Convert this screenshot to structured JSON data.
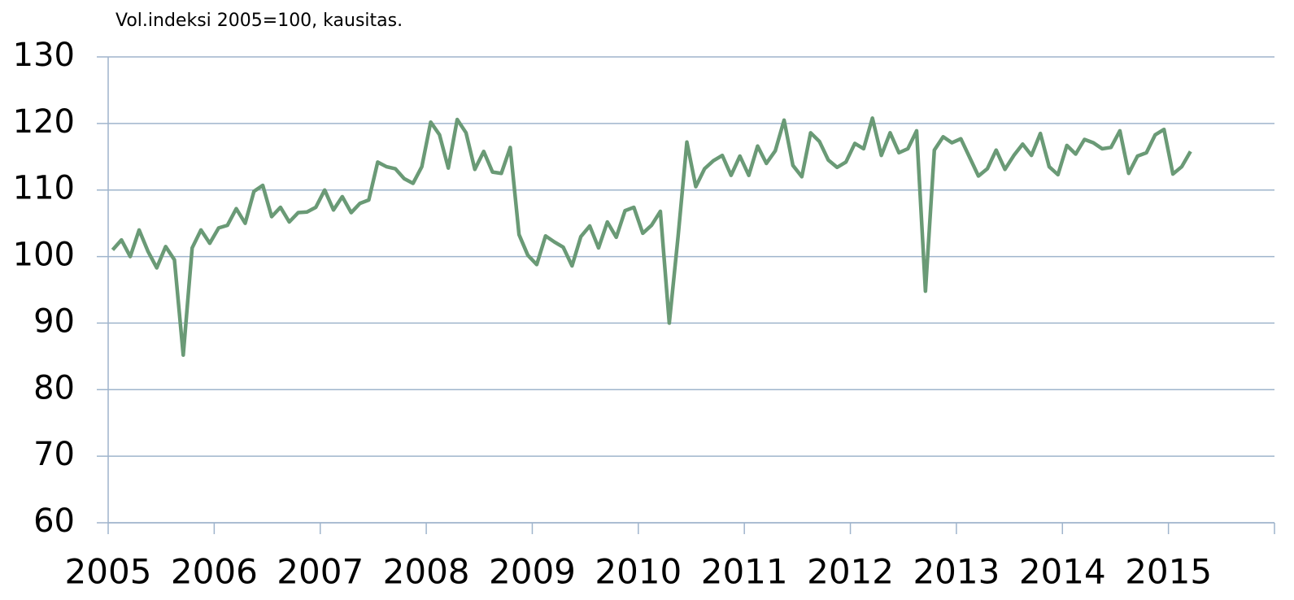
{
  "chart_data": {
    "type": "line",
    "title": "Vol.indeksi 2005=100, kausitas.",
    "xlim": [
      2005,
      2016
    ],
    "xticks": [
      2005,
      2006,
      2007,
      2008,
      2009,
      2010,
      2011,
      2012,
      2013,
      2014,
      2015
    ],
    "ylim": [
      60,
      130
    ],
    "yticks": [
      60,
      70,
      80,
      90,
      100,
      110,
      120,
      130
    ],
    "grid": true,
    "x": [
      2005.042,
      2005.125,
      2005.208,
      2005.292,
      2005.375,
      2005.458,
      2005.542,
      2005.625,
      2005.708,
      2005.792,
      2005.875,
      2005.958,
      2006.042,
      2006.125,
      2006.208,
      2006.292,
      2006.375,
      2006.458,
      2006.542,
      2006.625,
      2006.708,
      2006.792,
      2006.875,
      2006.958,
      2007.042,
      2007.125,
      2007.208,
      2007.292,
      2007.375,
      2007.458,
      2007.542,
      2007.625,
      2007.708,
      2007.792,
      2007.875,
      2007.958,
      2008.042,
      2008.125,
      2008.208,
      2008.292,
      2008.375,
      2008.458,
      2008.542,
      2008.625,
      2008.708,
      2008.792,
      2008.875,
      2008.958,
      2009.042,
      2009.125,
      2009.208,
      2009.292,
      2009.375,
      2009.458,
      2009.542,
      2009.625,
      2009.708,
      2009.792,
      2009.875,
      2009.958,
      2010.042,
      2010.125,
      2010.208,
      2010.292,
      2010.375,
      2010.458,
      2010.542,
      2010.625,
      2010.708,
      2010.792,
      2010.875,
      2010.958,
      2011.042,
      2011.125,
      2011.208,
      2011.292,
      2011.375,
      2011.458,
      2011.542,
      2011.625,
      2011.708,
      2011.792,
      2011.875,
      2011.958,
      2012.042,
      2012.125,
      2012.208,
      2012.292,
      2012.375,
      2012.458,
      2012.542,
      2012.625,
      2012.708,
      2012.792,
      2012.875,
      2012.958,
      2013.042,
      2013.125,
      2013.208,
      2013.292,
      2013.375,
      2013.458,
      2013.542,
      2013.625,
      2013.708,
      2013.792,
      2013.875,
      2013.958,
      2014.042,
      2014.125,
      2014.208,
      2014.292,
      2014.375,
      2014.458,
      2014.542,
      2014.625,
      2014.708,
      2014.792,
      2014.875,
      2014.958,
      2015.042,
      2015.125,
      2015.208
    ],
    "series": [
      {
        "color": "#6a9a76",
        "values": [
          101,
          102.5,
          100,
          104,
          100.8,
          98.3,
          101.5,
          99.5,
          85.2,
          101.3,
          104,
          102,
          104.3,
          104.7,
          107.2,
          105,
          109.8,
          110.7,
          106,
          107.4,
          105.2,
          106.6,
          106.7,
          107.4,
          110,
          107,
          109,
          106.6,
          108,
          108.5,
          114.2,
          113.5,
          113.2,
          111.7,
          111,
          113.5,
          120.2,
          118.3,
          113.3,
          120.6,
          118.6,
          113.1,
          115.8,
          112.7,
          112.5,
          116.4,
          103.3,
          100.2,
          98.8,
          103.1,
          102.2,
          101.4,
          98.6,
          103,
          104.6,
          101.3,
          105.2,
          102.9,
          106.9,
          107.4,
          103.5,
          104.7,
          106.8,
          90,
          103,
          117.2,
          110.5,
          113.2,
          114.4,
          115.2,
          112.2,
          115.1,
          112.2,
          116.6,
          114,
          115.9,
          120.5,
          113.7,
          112,
          118.6,
          117.3,
          114.5,
          113.4,
          114.2,
          117,
          116.2,
          120.8,
          115.2,
          118.6,
          115.6,
          116.2,
          118.9,
          94.8,
          116,
          118,
          117.1,
          117.7,
          114.9,
          112.1,
          113.2,
          116,
          113.1,
          115.2,
          116.9,
          115.2,
          118.5,
          113.5,
          112.3,
          116.7,
          115.4,
          117.6,
          117.1,
          116.2,
          116.4,
          118.9,
          112.5,
          115.1,
          115.6,
          118.3,
          119.1,
          112.4,
          113.5,
          115.8
        ]
      }
    ]
  }
}
